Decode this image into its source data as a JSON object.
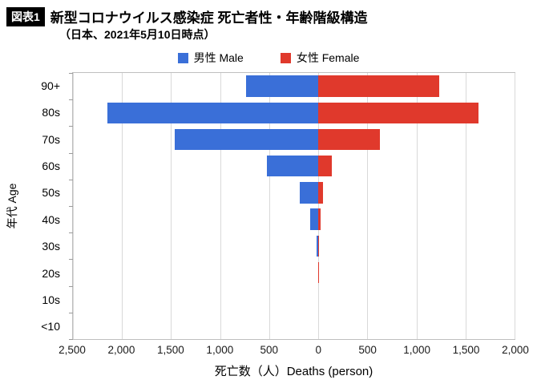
{
  "header": {
    "badge": "図表1",
    "title": "新型コロナウイルス感染症 死亡者性・年齢階級構造",
    "subtitle": "（日本、2021年5月10日時点）"
  },
  "legend": {
    "male": "男性 Male",
    "female": "女性 Female"
  },
  "colors": {
    "male": "#3a6fd8",
    "female": "#e0392c",
    "grid": "#d9d9d9",
    "plot_border": "#bfbfbf"
  },
  "chart_data": {
    "type": "bar",
    "orientation": "horizontal-pyramid",
    "title": "新型コロナウイルス感染症 死亡者性・年齢階級構造（日本、2021年5月10日時点）",
    "categories": [
      "90+",
      "80s",
      "70s",
      "60s",
      "50s",
      "40s",
      "30s",
      "20s",
      "10s",
      "<10"
    ],
    "series": [
      {
        "name": "男性 Male",
        "side": "left",
        "color": "#3a6fd8",
        "values": [
          740,
          2150,
          1460,
          520,
          185,
          80,
          20,
          4,
          0,
          0
        ]
      },
      {
        "name": "女性 Female",
        "side": "right",
        "color": "#e0392c",
        "values": [
          1230,
          1630,
          630,
          135,
          45,
          20,
          8,
          2,
          0,
          0
        ]
      }
    ],
    "xlabel": "死亡数（人）Deaths (person)",
    "ylabel": "年代 Age",
    "xlim": [
      -2500,
      2000
    ],
    "x_ticks": [
      -2500,
      -2000,
      -1500,
      -1000,
      -500,
      0,
      500,
      1000,
      1500,
      2000
    ],
    "x_tick_labels": [
      "2,500",
      "2,000",
      "1,500",
      "1,000",
      "500",
      "0",
      "500",
      "1,000",
      "1,500",
      "2,000"
    ],
    "grid": true,
    "legend_position": "top"
  }
}
